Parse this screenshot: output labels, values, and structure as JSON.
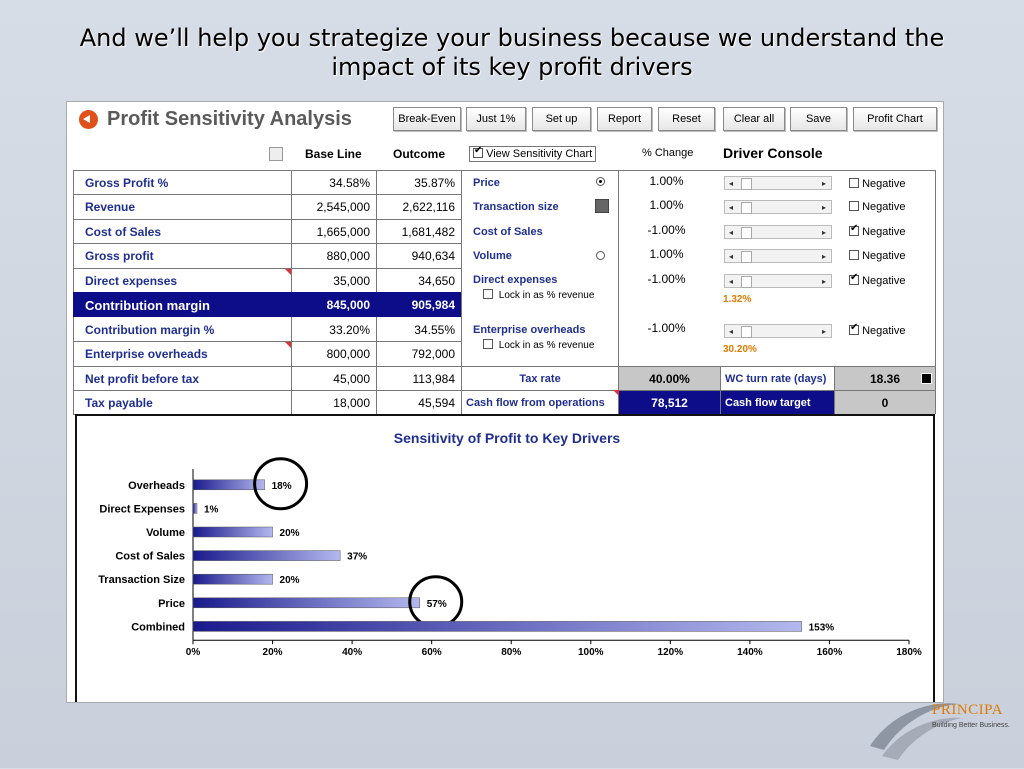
{
  "slide": {
    "title_line1": "And we’ll help you strategize your business because we understand the",
    "title_line2": "impact of its key profit drivers"
  },
  "app": {
    "title": "Profit Sensitivity Analysis",
    "toolbar": [
      "Break-Even",
      "Just 1%",
      "Set up",
      "Report",
      "Reset",
      "Clear all",
      "Save",
      "Profit Chart"
    ]
  },
  "columns": {
    "baseline": "Base Line",
    "outcome": "Outcome",
    "view_chart": "View Sensitivity Chart",
    "pct_change": "% Change",
    "driver_console": "Driver Console"
  },
  "rows": [
    {
      "label": "Gross Profit %",
      "base": "34.58%",
      "outcome": "35.87%"
    },
    {
      "label": "Revenue",
      "base": "2,545,000",
      "outcome": "2,622,116"
    },
    {
      "label": "Cost of Sales",
      "base": "1,665,000",
      "outcome": "1,681,482"
    },
    {
      "label": "Gross profit",
      "base": "880,000",
      "outcome": "940,634"
    },
    {
      "label": "Direct expenses",
      "base": "35,000",
      "outcome": "34,650"
    },
    {
      "label": "Contribution margin",
      "base": "845,000",
      "outcome": "905,984"
    },
    {
      "label": "Contribution margin %",
      "base": "33.20%",
      "outcome": "34.55%"
    },
    {
      "label": "Enterprise overheads",
      "base": "800,000",
      "outcome": "792,000"
    },
    {
      "label": "Net profit before tax",
      "base": "45,000",
      "outcome": "113,984"
    },
    {
      "label": "Tax payable",
      "base": "18,000",
      "outcome": "45,594"
    }
  ],
  "drivers": [
    {
      "label": "Price",
      "change": "1.00%",
      "negative_label": "Negative",
      "negative": false
    },
    {
      "label": "Transaction size",
      "change": "1.00%",
      "negative_label": "Negative",
      "negative": false
    },
    {
      "label": "Cost of Sales",
      "change": "-1.00%",
      "negative_label": "Negative",
      "negative": true
    },
    {
      "label": "Volume",
      "change": "1.00%",
      "negative_label": "Negative",
      "negative": false
    },
    {
      "label": "Direct expenses",
      "change": "-1.00%",
      "negative_label": "Negative",
      "negative": true,
      "lock": "Lock in as % revenue",
      "pct": "1.32%"
    },
    {
      "label": "Enterprise overheads",
      "change": "-1.00%",
      "negative_label": "Negative",
      "negative": true,
      "lock": "Lock in as % revenue",
      "pct": "30.20%"
    }
  ],
  "bottom": {
    "tax_rate_label": "Tax rate",
    "tax_rate_value": "40.00%",
    "wc_label": "WC turn rate (days)",
    "wc_value": "18.36",
    "cashflow_label": "Cash flow from operations",
    "cashflow_value": "78,512",
    "cf_target_label": "Cash flow target",
    "cf_target_value": "0"
  },
  "chart_data": {
    "type": "bar",
    "orientation": "horizontal",
    "title": "Sensitivity of Profit to Key Drivers",
    "categories": [
      "Overheads",
      "Direct Expenses",
      "Volume",
      "Cost of Sales",
      "Transaction Size",
      "Price",
      "Combined"
    ],
    "values": [
      18,
      1,
      20,
      37,
      20,
      57,
      153
    ],
    "value_labels": [
      "18%",
      "1%",
      "20%",
      "37%",
      "20%",
      "57%",
      "153%"
    ],
    "xlim": [
      0,
      180
    ],
    "xticks": [
      "0%",
      "20%",
      "40%",
      "60%",
      "80%",
      "100%",
      "120%",
      "140%",
      "160%",
      "180%"
    ],
    "highlighted": [
      "Overheads",
      "Price"
    ],
    "colors": {
      "bar_dark": "#1a1a8c",
      "bar_light": "#b4b8ee"
    }
  },
  "logo": {
    "name": "PRINCIPA",
    "tagline": "Building Better Business."
  }
}
